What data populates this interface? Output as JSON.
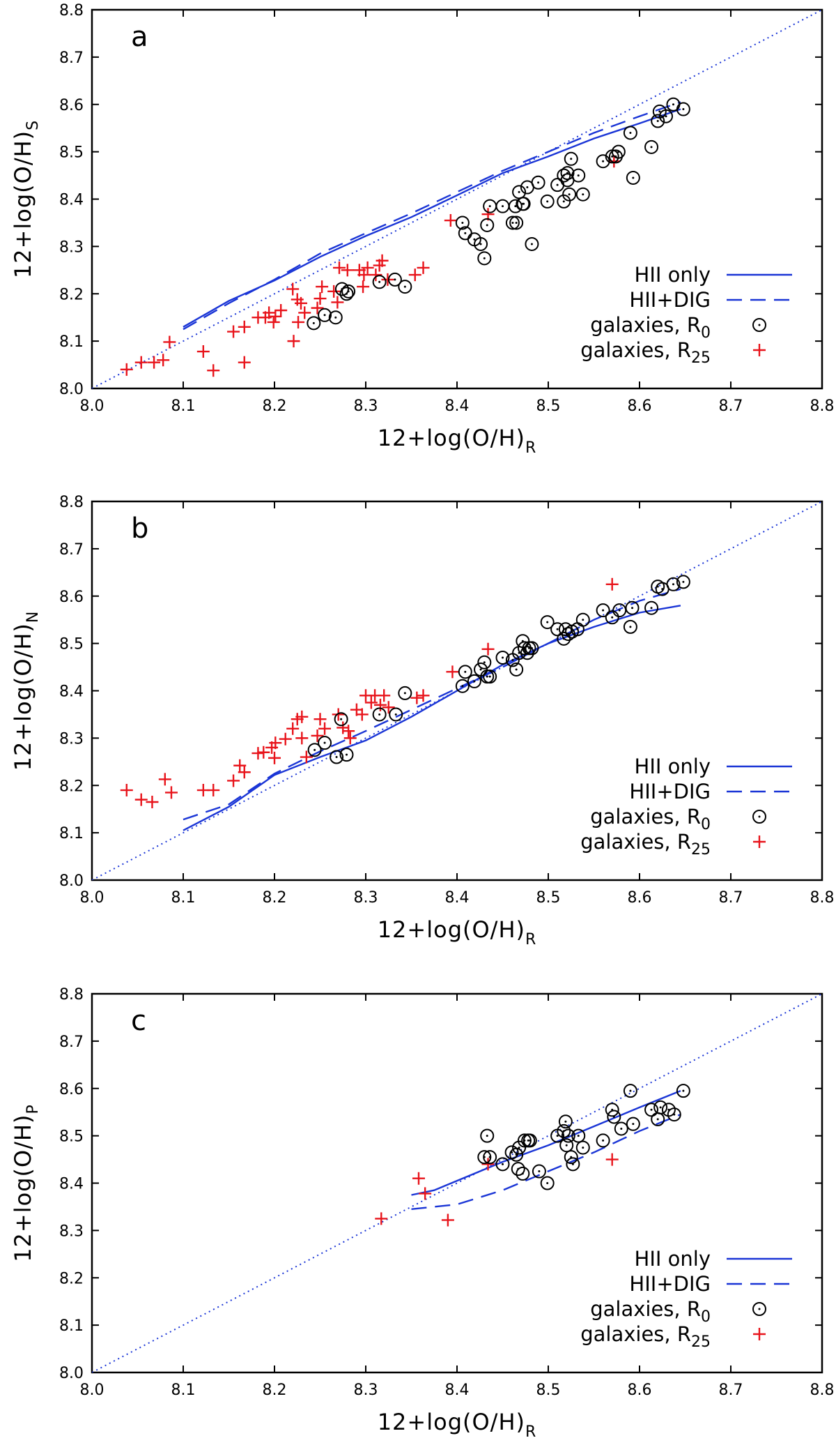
{
  "colors": {
    "model": "#1a35d6",
    "plus": "#e8141b",
    "circle": "#000000",
    "frame": "#000000"
  },
  "legend_entries": [
    {
      "id": "hii",
      "text": "HII only",
      "style": "solid"
    },
    {
      "id": "dig",
      "text": "HII+DIG",
      "style": "dashed"
    },
    {
      "id": "r0",
      "text": "galaxies, R",
      "sub": "0",
      "style": "circle"
    },
    {
      "id": "r25",
      "text": "galaxies, R",
      "sub": "25",
      "style": "plus"
    }
  ],
  "chart_data": [
    {
      "type": "scatter",
      "panel_label": "a",
      "xlabel": "12+log(O/H)",
      "xlabel_sub": "R",
      "ylabel": "12+log(O/H)",
      "ylabel_sub": "S",
      "xlim": [
        8.0,
        8.8
      ],
      "ylim": [
        8.0,
        8.8
      ],
      "xticks": [
        "8.0",
        "8.1",
        "8.2",
        "8.3",
        "8.4",
        "8.5",
        "8.6",
        "8.7",
        "8.8"
      ],
      "yticks": [
        "8.0",
        "8.1",
        "8.2",
        "8.3",
        "8.4",
        "8.5",
        "8.6",
        "8.7",
        "8.8"
      ],
      "one_to_one": [
        [
          8.0,
          8.0
        ],
        [
          8.8,
          8.8
        ]
      ],
      "hii_only": [
        [
          8.1,
          8.13
        ],
        [
          8.15,
          8.185
        ],
        [
          8.2,
          8.228
        ],
        [
          8.25,
          8.278
        ],
        [
          8.3,
          8.322
        ],
        [
          8.35,
          8.362
        ],
        [
          8.4,
          8.408
        ],
        [
          8.45,
          8.455
        ],
        [
          8.5,
          8.49
        ],
        [
          8.55,
          8.528
        ],
        [
          8.6,
          8.56
        ],
        [
          8.645,
          8.59
        ]
      ],
      "hii_dig": [
        [
          8.1,
          8.125
        ],
        [
          8.15,
          8.18
        ],
        [
          8.2,
          8.23
        ],
        [
          8.25,
          8.285
        ],
        [
          8.3,
          8.328
        ],
        [
          8.35,
          8.37
        ],
        [
          8.4,
          8.415
        ],
        [
          8.45,
          8.46
        ],
        [
          8.5,
          8.5
        ],
        [
          8.55,
          8.54
        ],
        [
          8.6,
          8.575
        ],
        [
          8.645,
          8.605
        ]
      ],
      "galaxies_r0": [
        [
          8.243,
          8.138
        ],
        [
          8.255,
          8.155
        ],
        [
          8.267,
          8.15
        ],
        [
          8.274,
          8.21
        ],
        [
          8.279,
          8.2
        ],
        [
          8.281,
          8.205
        ],
        [
          8.315,
          8.225
        ],
        [
          8.332,
          8.23
        ],
        [
          8.343,
          8.215
        ],
        [
          8.406,
          8.35
        ],
        [
          8.409,
          8.328
        ],
        [
          8.419,
          8.315
        ],
        [
          8.426,
          8.305
        ],
        [
          8.43,
          8.275
        ],
        [
          8.433,
          8.345
        ],
        [
          8.436,
          8.385
        ],
        [
          8.45,
          8.385
        ],
        [
          8.461,
          8.35
        ],
        [
          8.465,
          8.35
        ],
        [
          8.464,
          8.385
        ],
        [
          8.468,
          8.415
        ],
        [
          8.472,
          8.39
        ],
        [
          8.473,
          8.39
        ],
        [
          8.477,
          8.425
        ],
        [
          8.482,
          8.305
        ],
        [
          8.489,
          8.435
        ],
        [
          8.499,
          8.395
        ],
        [
          8.51,
          8.43
        ],
        [
          8.517,
          8.395
        ],
        [
          8.517,
          8.45
        ],
        [
          8.521,
          8.44
        ],
        [
          8.521,
          8.455
        ],
        [
          8.523,
          8.41
        ],
        [
          8.525,
          8.485
        ],
        [
          8.533,
          8.45
        ],
        [
          8.538,
          8.41
        ],
        [
          8.56,
          8.48
        ],
        [
          8.57,
          8.49
        ],
        [
          8.574,
          8.49
        ],
        [
          8.577,
          8.5
        ],
        [
          8.59,
          8.54
        ],
        [
          8.593,
          8.445
        ],
        [
          8.613,
          8.51
        ],
        [
          8.62,
          8.565
        ],
        [
          8.622,
          8.585
        ],
        [
          8.629,
          8.575
        ],
        [
          8.637,
          8.6
        ],
        [
          8.648,
          8.59
        ]
      ],
      "galaxies_r25": [
        [
          8.038,
          8.04
        ],
        [
          8.054,
          8.055
        ],
        [
          8.068,
          8.055
        ],
        [
          8.078,
          8.06
        ],
        [
          8.085,
          8.098
        ],
        [
          8.122,
          8.078
        ],
        [
          8.133,
          8.038
        ],
        [
          8.155,
          8.12
        ],
        [
          8.167,
          8.13
        ],
        [
          8.167,
          8.055
        ],
        [
          8.182,
          8.15
        ],
        [
          8.19,
          8.15
        ],
        [
          8.194,
          8.16
        ],
        [
          8.199,
          8.14
        ],
        [
          8.201,
          8.152
        ],
        [
          8.207,
          8.165
        ],
        [
          8.22,
          8.21
        ],
        [
          8.221,
          8.1
        ],
        [
          8.225,
          8.188
        ],
        [
          8.226,
          8.14
        ],
        [
          8.229,
          8.18
        ],
        [
          8.233,
          8.16
        ],
        [
          8.247,
          8.17
        ],
        [
          8.25,
          8.19
        ],
        [
          8.252,
          8.215
        ],
        [
          8.265,
          8.205
        ],
        [
          8.269,
          8.182
        ],
        [
          8.271,
          8.255
        ],
        [
          8.28,
          8.25
        ],
        [
          8.293,
          8.25
        ],
        [
          8.297,
          8.215
        ],
        [
          8.298,
          8.24
        ],
        [
          8.302,
          8.255
        ],
        [
          8.311,
          8.24
        ],
        [
          8.315,
          8.26
        ],
        [
          8.318,
          8.27
        ],
        [
          8.324,
          8.23
        ],
        [
          8.354,
          8.24
        ],
        [
          8.363,
          8.255
        ],
        [
          8.393,
          8.355
        ],
        [
          8.434,
          8.368
        ],
        [
          8.572,
          8.48
        ]
      ]
    },
    {
      "type": "scatter",
      "panel_label": "b",
      "xlabel": "12+log(O/H)",
      "xlabel_sub": "R",
      "ylabel": "12+log(O/H)",
      "ylabel_sub": "N",
      "xlim": [
        8.0,
        8.8
      ],
      "ylim": [
        8.0,
        8.8
      ],
      "xticks": [
        "8.0",
        "8.1",
        "8.2",
        "8.3",
        "8.4",
        "8.5",
        "8.6",
        "8.7",
        "8.8"
      ],
      "yticks": [
        "8.0",
        "8.1",
        "8.2",
        "8.3",
        "8.4",
        "8.5",
        "8.6",
        "8.7",
        "8.8"
      ],
      "one_to_one": [
        [
          8.0,
          8.0
        ],
        [
          8.8,
          8.8
        ]
      ],
      "hii_only": [
        [
          8.1,
          8.105
        ],
        [
          8.15,
          8.155
        ],
        [
          8.2,
          8.222
        ],
        [
          8.25,
          8.26
        ],
        [
          8.3,
          8.295
        ],
        [
          8.35,
          8.345
        ],
        [
          8.4,
          8.4
        ],
        [
          8.45,
          8.455
        ],
        [
          8.5,
          8.5
        ],
        [
          8.55,
          8.535
        ],
        [
          8.6,
          8.565
        ],
        [
          8.645,
          8.58
        ]
      ],
      "hii_dig": [
        [
          8.1,
          8.128
        ],
        [
          8.15,
          8.16
        ],
        [
          8.2,
          8.225
        ],
        [
          8.25,
          8.272
        ],
        [
          8.3,
          8.315
        ],
        [
          8.35,
          8.36
        ],
        [
          8.4,
          8.405
        ],
        [
          8.45,
          8.45
        ],
        [
          8.5,
          8.5
        ],
        [
          8.55,
          8.55
        ],
        [
          8.6,
          8.59
        ],
        [
          8.645,
          8.615
        ]
      ],
      "galaxies_r0": [
        [
          8.244,
          8.275
        ],
        [
          8.255,
          8.29
        ],
        [
          8.268,
          8.26
        ],
        [
          8.273,
          8.34
        ],
        [
          8.279,
          8.265
        ],
        [
          8.315,
          8.35
        ],
        [
          8.333,
          8.35
        ],
        [
          8.343,
          8.395
        ],
        [
          8.406,
          8.41
        ],
        [
          8.409,
          8.44
        ],
        [
          8.419,
          8.42
        ],
        [
          8.426,
          8.445
        ],
        [
          8.43,
          8.46
        ],
        [
          8.433,
          8.43
        ],
        [
          8.436,
          8.43
        ],
        [
          8.45,
          8.47
        ],
        [
          8.461,
          8.465
        ],
        [
          8.465,
          8.445
        ],
        [
          8.468,
          8.48
        ],
        [
          8.472,
          8.505
        ],
        [
          8.474,
          8.49
        ],
        [
          8.477,
          8.48
        ],
        [
          8.479,
          8.49
        ],
        [
          8.482,
          8.49
        ],
        [
          8.499,
          8.545
        ],
        [
          8.51,
          8.53
        ],
        [
          8.517,
          8.51
        ],
        [
          8.519,
          8.53
        ],
        [
          8.522,
          8.52
        ],
        [
          8.526,
          8.525
        ],
        [
          8.532,
          8.53
        ],
        [
          8.538,
          8.55
        ],
        [
          8.56,
          8.57
        ],
        [
          8.57,
          8.555
        ],
        [
          8.578,
          8.57
        ],
        [
          8.59,
          8.535
        ],
        [
          8.592,
          8.575
        ],
        [
          8.613,
          8.575
        ],
        [
          8.62,
          8.62
        ],
        [
          8.625,
          8.615
        ],
        [
          8.637,
          8.625
        ],
        [
          8.648,
          8.63
        ]
      ],
      "galaxies_r25": [
        [
          8.038,
          8.19
        ],
        [
          8.054,
          8.17
        ],
        [
          8.066,
          8.165
        ],
        [
          8.08,
          8.213
        ],
        [
          8.087,
          8.185
        ],
        [
          8.122,
          8.19
        ],
        [
          8.133,
          8.19
        ],
        [
          8.155,
          8.21
        ],
        [
          8.162,
          8.242
        ],
        [
          8.167,
          8.228
        ],
        [
          8.182,
          8.268
        ],
        [
          8.188,
          8.27
        ],
        [
          8.197,
          8.28
        ],
        [
          8.2,
          8.258
        ],
        [
          8.201,
          8.29
        ],
        [
          8.212,
          8.298
        ],
        [
          8.22,
          8.32
        ],
        [
          8.225,
          8.34
        ],
        [
          8.23,
          8.345
        ],
        [
          8.23,
          8.3
        ],
        [
          8.235,
          8.26
        ],
        [
          8.247,
          8.305
        ],
        [
          8.25,
          8.34
        ],
        [
          8.255,
          8.32
        ],
        [
          8.27,
          8.35
        ],
        [
          8.275,
          8.322
        ],
        [
          8.281,
          8.315
        ],
        [
          8.283,
          8.3
        ],
        [
          8.29,
          8.36
        ],
        [
          8.296,
          8.35
        ],
        [
          8.3,
          8.39
        ],
        [
          8.306,
          8.375
        ],
        [
          8.31,
          8.39
        ],
        [
          8.316,
          8.37
        ],
        [
          8.32,
          8.39
        ],
        [
          8.325,
          8.365
        ],
        [
          8.356,
          8.385
        ],
        [
          8.363,
          8.39
        ],
        [
          8.395,
          8.44
        ],
        [
          8.434,
          8.488
        ],
        [
          8.57,
          8.625
        ]
      ]
    },
    {
      "type": "scatter",
      "panel_label": "c",
      "xlabel": "12+log(O/H)",
      "xlabel_sub": "R",
      "ylabel": "12+log(O/H)",
      "ylabel_sub": "P",
      "xlim": [
        8.0,
        8.8
      ],
      "ylim": [
        8.0,
        8.8
      ],
      "xticks": [
        "8.0",
        "8.1",
        "8.2",
        "8.3",
        "8.4",
        "8.5",
        "8.6",
        "8.7",
        "8.8"
      ],
      "yticks": [
        "8.0",
        "8.1",
        "8.2",
        "8.3",
        "8.4",
        "8.5",
        "8.6",
        "8.7",
        "8.8"
      ],
      "one_to_one": [
        [
          8.0,
          8.0
        ],
        [
          8.8,
          8.8
        ]
      ],
      "hii_only": [
        [
          8.35,
          8.375
        ],
        [
          8.375,
          8.385
        ],
        [
          8.4,
          8.405
        ],
        [
          8.45,
          8.445
        ],
        [
          8.5,
          8.48
        ],
        [
          8.55,
          8.52
        ],
        [
          8.6,
          8.56
        ],
        [
          8.645,
          8.595
        ]
      ],
      "hii_dig": [
        [
          8.35,
          8.345
        ],
        [
          8.375,
          8.35
        ],
        [
          8.4,
          8.355
        ],
        [
          8.45,
          8.385
        ],
        [
          8.5,
          8.425
        ],
        [
          8.55,
          8.465
        ],
        [
          8.6,
          8.51
        ],
        [
          8.645,
          8.545
        ]
      ],
      "galaxies_r0": [
        [
          8.43,
          8.455
        ],
        [
          8.433,
          8.5
        ],
        [
          8.436,
          8.455
        ],
        [
          8.45,
          8.44
        ],
        [
          8.46,
          8.465
        ],
        [
          8.465,
          8.46
        ],
        [
          8.467,
          8.43
        ],
        [
          8.468,
          8.475
        ],
        [
          8.472,
          8.42
        ],
        [
          8.474,
          8.49
        ],
        [
          8.478,
          8.49
        ],
        [
          8.48,
          8.49
        ],
        [
          8.49,
          8.425
        ],
        [
          8.499,
          8.4
        ],
        [
          8.51,
          8.5
        ],
        [
          8.517,
          8.51
        ],
        [
          8.519,
          8.53
        ],
        [
          8.52,
          8.48
        ],
        [
          8.522,
          8.5
        ],
        [
          8.525,
          8.455
        ],
        [
          8.527,
          8.44
        ],
        [
          8.533,
          8.5
        ],
        [
          8.538,
          8.475
        ],
        [
          8.56,
          8.49
        ],
        [
          8.57,
          8.555
        ],
        [
          8.572,
          8.54
        ],
        [
          8.58,
          8.515
        ],
        [
          8.59,
          8.595
        ],
        [
          8.593,
          8.525
        ],
        [
          8.613,
          8.555
        ],
        [
          8.62,
          8.535
        ],
        [
          8.623,
          8.56
        ],
        [
          8.632,
          8.555
        ],
        [
          8.638,
          8.545
        ],
        [
          8.648,
          8.595
        ]
      ],
      "galaxies_r25": [
        [
          8.317,
          8.325
        ],
        [
          8.358,
          8.41
        ],
        [
          8.365,
          8.378
        ],
        [
          8.39,
          8.322
        ],
        [
          8.434,
          8.44
        ],
        [
          8.57,
          8.45
        ]
      ]
    }
  ]
}
